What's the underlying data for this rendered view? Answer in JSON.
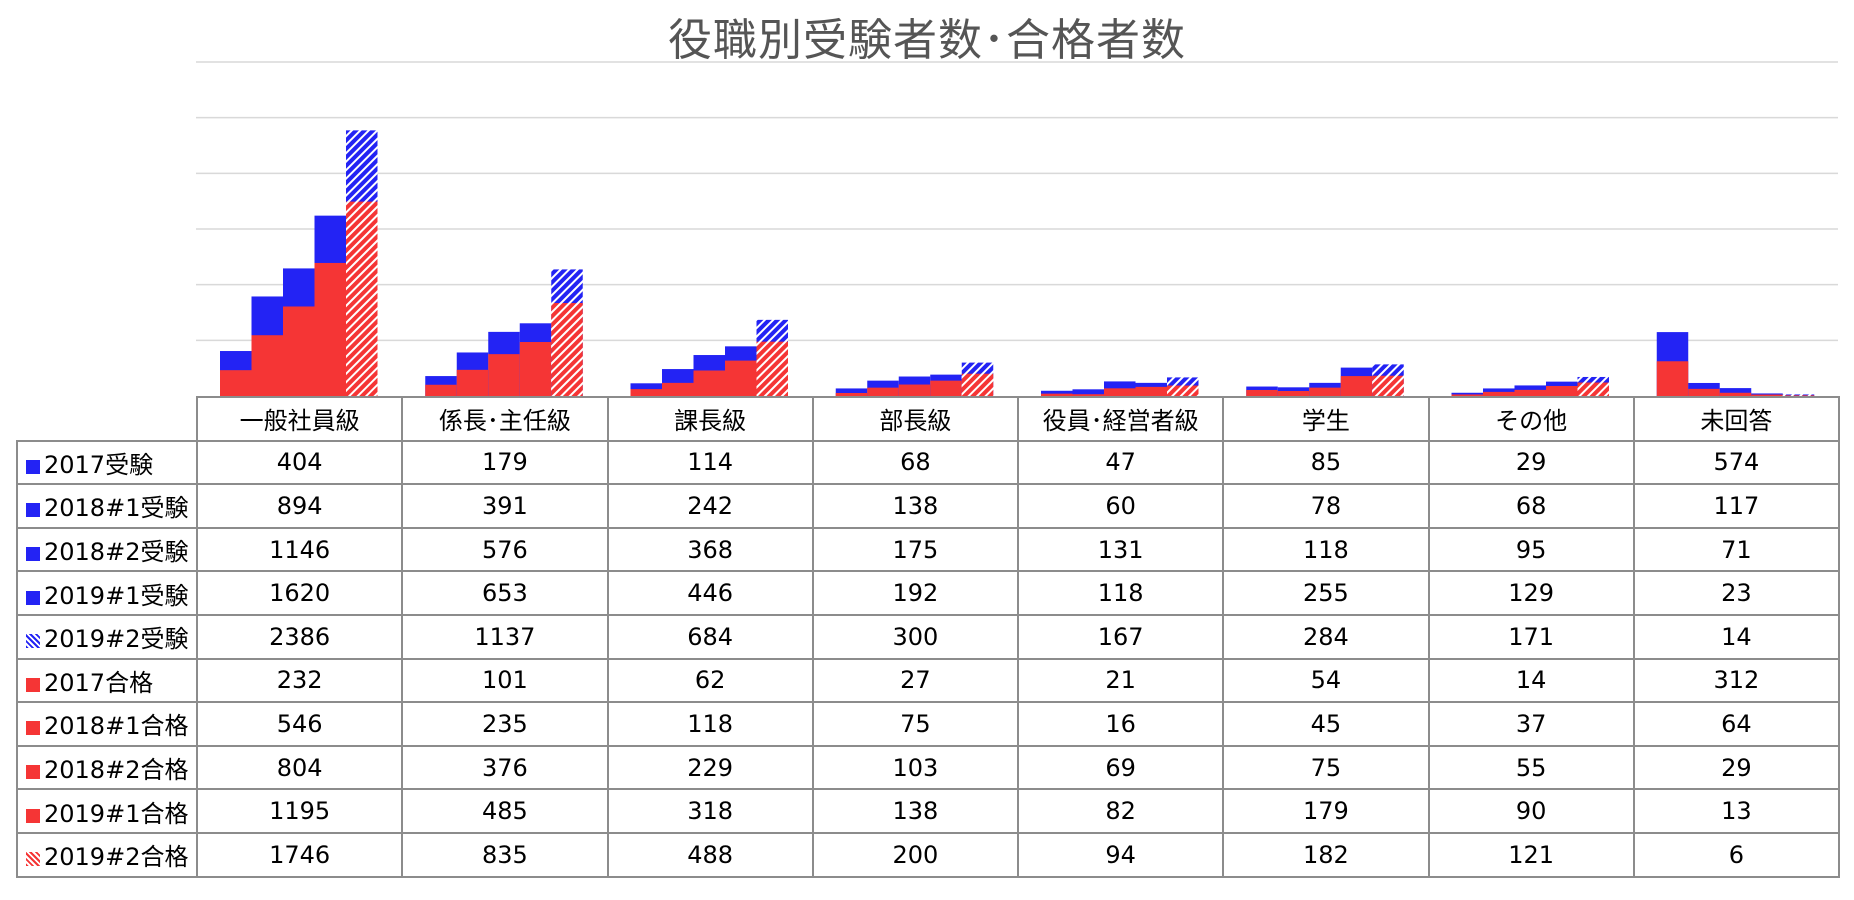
{
  "chart_data": {
    "type": "bar",
    "title": "役職別受験者数･合格者数",
    "categories": [
      "一般社員級",
      "係長･主任級",
      "課長級",
      "部長級",
      "役員･経営者級",
      "学生",
      "その他",
      "未回答"
    ],
    "series": [
      {
        "name": "2017受験",
        "kind": "exam",
        "pattern": "solid",
        "color": "#2323f4",
        "values": [
          404,
          179,
          114,
          68,
          47,
          85,
          29,
          574
        ]
      },
      {
        "name": "2018#1受験",
        "kind": "exam",
        "pattern": "solid",
        "color": "#2323f4",
        "values": [
          894,
          391,
          242,
          138,
          60,
          78,
          68,
          117
        ]
      },
      {
        "name": "2018#2受験",
        "kind": "exam",
        "pattern": "solid",
        "color": "#2323f4",
        "values": [
          1146,
          576,
          368,
          175,
          131,
          118,
          95,
          71
        ]
      },
      {
        "name": "2019#1受験",
        "kind": "exam",
        "pattern": "solid",
        "color": "#2323f4",
        "values": [
          1620,
          653,
          446,
          192,
          118,
          255,
          129,
          23
        ]
      },
      {
        "name": "2019#2受験",
        "kind": "exam",
        "pattern": "hatched",
        "color": "#2323f4",
        "values": [
          2386,
          1137,
          684,
          300,
          167,
          284,
          171,
          14
        ]
      },
      {
        "name": "2017合格",
        "kind": "pass",
        "pattern": "solid",
        "color": "#f53535",
        "values": [
          232,
          101,
          62,
          27,
          21,
          54,
          14,
          312
        ]
      },
      {
        "name": "2018#1合格",
        "kind": "pass",
        "pattern": "solid",
        "color": "#f53535",
        "values": [
          546,
          235,
          118,
          75,
          16,
          45,
          37,
          64
        ]
      },
      {
        "name": "2018#2合格",
        "kind": "pass",
        "pattern": "solid",
        "color": "#f53535",
        "values": [
          804,
          376,
          229,
          103,
          69,
          75,
          55,
          29
        ]
      },
      {
        "name": "2019#1合格",
        "kind": "pass",
        "pattern": "solid",
        "color": "#f53535",
        "values": [
          1195,
          485,
          318,
          138,
          82,
          179,
          90,
          13
        ]
      },
      {
        "name": "2019#2合格",
        "kind": "pass",
        "pattern": "hatched",
        "color": "#f53535",
        "values": [
          1746,
          835,
          488,
          200,
          94,
          182,
          121,
          6
        ]
      }
    ],
    "ylim": [
      0,
      3000
    ],
    "grid": true,
    "legend": "data-table"
  }
}
